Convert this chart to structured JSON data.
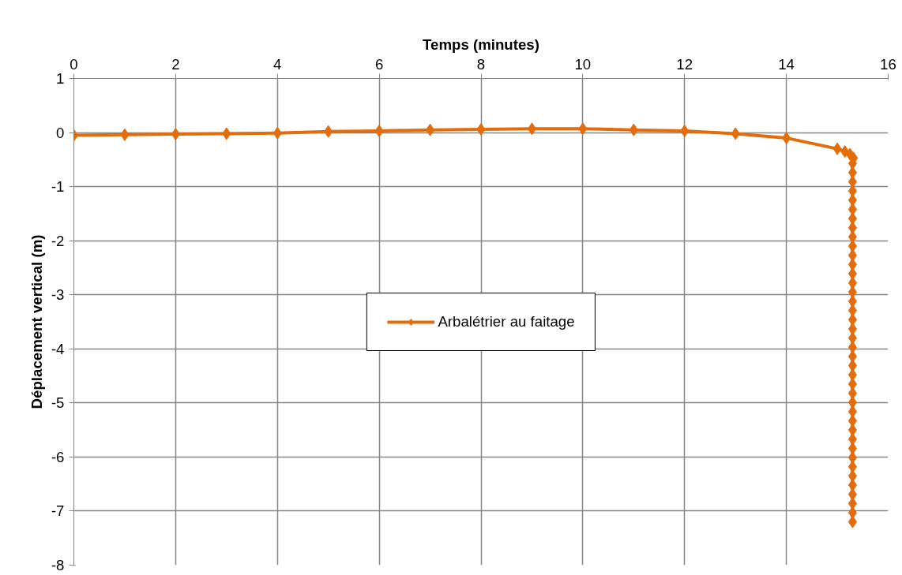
{
  "chart_data": {
    "type": "line",
    "xlabel": "Temps (minutes)",
    "ylabel": "Déplacement vertical (m)",
    "xlim": [
      0,
      16
    ],
    "xticks": [
      0,
      2,
      4,
      6,
      8,
      10,
      12,
      14,
      16
    ],
    "ylim": [
      -8,
      1
    ],
    "yticks": [
      -8,
      -7,
      -6,
      -5,
      -4,
      -3,
      -2,
      -1,
      0,
      1
    ],
    "grid": true,
    "legend": "center",
    "marker": "diamond",
    "line_style": "solid",
    "series": [
      {
        "name": "Arbalétrier au faitage",
        "color": "#e46c0a",
        "x": [
          0,
          1,
          2,
          3,
          4,
          5,
          6,
          7,
          8,
          9,
          10,
          11,
          12,
          13,
          14,
          15,
          15.15,
          15.25,
          15.32,
          15.3,
          15.3,
          15.3,
          15.3,
          15.3,
          15.3,
          15.3,
          15.3,
          15.3,
          15.3,
          15.3,
          15.3,
          15.3,
          15.3,
          15.3,
          15.3,
          15.3,
          15.3,
          15.3,
          15.3,
          15.3,
          15.3,
          15.3,
          15.3,
          15.3,
          15.3,
          15.3,
          15.3,
          15.3,
          15.3,
          15.3,
          15.3,
          15.3,
          15.3,
          15.3,
          15.3,
          15.3,
          15.3,
          15.3,
          15.3
        ],
        "values": [
          -0.05,
          -0.04,
          -0.03,
          -0.02,
          -0.01,
          0.02,
          0.03,
          0.05,
          0.06,
          0.07,
          0.07,
          0.05,
          0.03,
          -0.02,
          -0.1,
          -0.3,
          -0.35,
          -0.4,
          -0.47,
          -0.57,
          -0.74,
          -0.91,
          -1.08,
          -1.25,
          -1.42,
          -1.59,
          -1.76,
          -1.93,
          -2.1,
          -2.27,
          -2.44,
          -2.61,
          -2.78,
          -2.95,
          -3.12,
          -3.29,
          -3.46,
          -3.63,
          -3.8,
          -3.97,
          -4.14,
          -4.31,
          -4.48,
          -4.65,
          -4.82,
          -4.99,
          -5.16,
          -5.33,
          -5.5,
          -5.67,
          -5.84,
          -6.01,
          -6.18,
          -6.35,
          -6.52,
          -6.69,
          -6.86,
          -7.03,
          -7.2
        ]
      }
    ]
  }
}
